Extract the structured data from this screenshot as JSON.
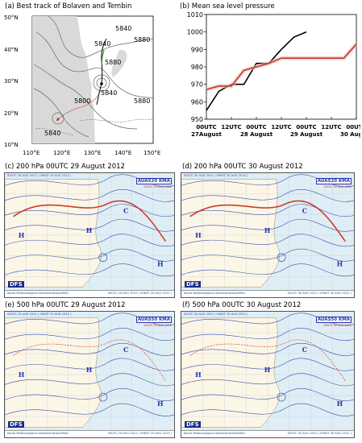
{
  "panel_a": {
    "title": "(a) Best track of Bolaven and Tembin",
    "lat_ticks": [
      "50°N",
      "40°N",
      "30°N",
      "20°N",
      "10°N"
    ],
    "lon_ticks": [
      "110°E",
      "120°E",
      "130°E",
      "140°E",
      "150°E"
    ],
    "isobars": [
      "5840",
      "5880",
      "5840",
      "5880",
      "5840",
      "5880",
      "5800",
      "5840"
    ]
  },
  "panel_b": {
    "title": "(b) Mean sea level pressure",
    "chart_data": {
      "type": "line",
      "title": "(b) Mean sea level pressure",
      "xlabel": "",
      "ylabel": "",
      "ylim": [
        950,
        1010
      ],
      "x_ticks": [
        {
          "l1": "00UTC",
          "l2": "27August"
        },
        {
          "l1": "12UTC",
          "l2": ""
        },
        {
          "l1": "00UTC",
          "l2": "28 August"
        },
        {
          "l1": "12UTC",
          "l2": ""
        },
        {
          "l1": "00UTC",
          "l2": "29 August"
        },
        {
          "l1": "12UTC",
          "l2": ""
        },
        {
          "l1": "00UTC",
          "l2": "30 August"
        }
      ],
      "y_ticks": [
        950,
        960,
        970,
        980,
        990,
        1000,
        1010
      ],
      "series": [
        {
          "color": "#000000",
          "x": [
            0,
            0.5,
            1,
            1.5,
            2,
            2.5,
            3,
            3.5,
            4
          ],
          "values": [
            955,
            966,
            970,
            970,
            982,
            982,
            990,
            997,
            1000
          ]
        },
        {
          "color": "#c0392b",
          "x": [
            0,
            0.5,
            1,
            1.5,
            2,
            2.5,
            3,
            3.5,
            4,
            4.5,
            5,
            5.5,
            6
          ],
          "values": [
            967,
            969,
            969,
            978,
            980,
            982,
            985,
            985,
            985,
            985,
            985,
            985,
            993
          ]
        }
      ]
    }
  },
  "panel_c": {
    "title": "(c) 200 hPa 00UTC 29 August 2012",
    "hdr": "00UTC 29 AUG 2012 ( 09KST 29 AUG 2012 )",
    "kma": "AUAS20 KMA",
    "kma_sub": "00UTC 29 AUG 2012",
    "dfs": "DFS",
    "foot_l": "Korea Meteorological Administration(KMA)",
    "foot_r": "00UTC 29 AUG 2012 ( 09KST 29 AUG 2012 )"
  },
  "panel_d": {
    "title": "(d) 200 hPa 00UTC 30 August 2012",
    "hdr": "00UTC 30 AUG 2012 ( 09KST 30 AUG 2012 )",
    "kma": "AUAS20 KMA",
    "kma_sub": "00UTC 30 AUG 2012",
    "dfs": "DFS",
    "foot_l": "Korea Meteorological Administration(KMA)",
    "foot_r": "00UTC 30 AUG 2012 ( 09KST 30 AUG 2012 )"
  },
  "panel_e": {
    "title": "(e) 500 hPa 00UTC 29 August 2012",
    "hdr": "00UTC 29 AUG 2012 ( 09KST 29 AUG 2012 )",
    "kma": "AUAS50 KMA",
    "kma_sub": "00UTC 29 AUG 2012",
    "dfs": "DFS",
    "foot_l": "Korea Meteorological Administration(KMA)",
    "foot_r": "00UTC 29 AUG 2012 ( 09KST 29 AUG 2012 )"
  },
  "panel_f": {
    "title": "(f) 500 hPa 00UTC 30 August 2012",
    "hdr": "00UTC 30 AUG 2012 ( 09KST 30 AUG 2012 )",
    "kma": "AUAS50 KMA",
    "kma_sub": "00UTC 30 AUG 2012",
    "dfs": "DFS",
    "foot_l": "Korea Meteorological Administration(KMA)",
    "foot_r": "00UTC 30 AUG 2012 ( 09KST 30 AUG 2012 )"
  }
}
